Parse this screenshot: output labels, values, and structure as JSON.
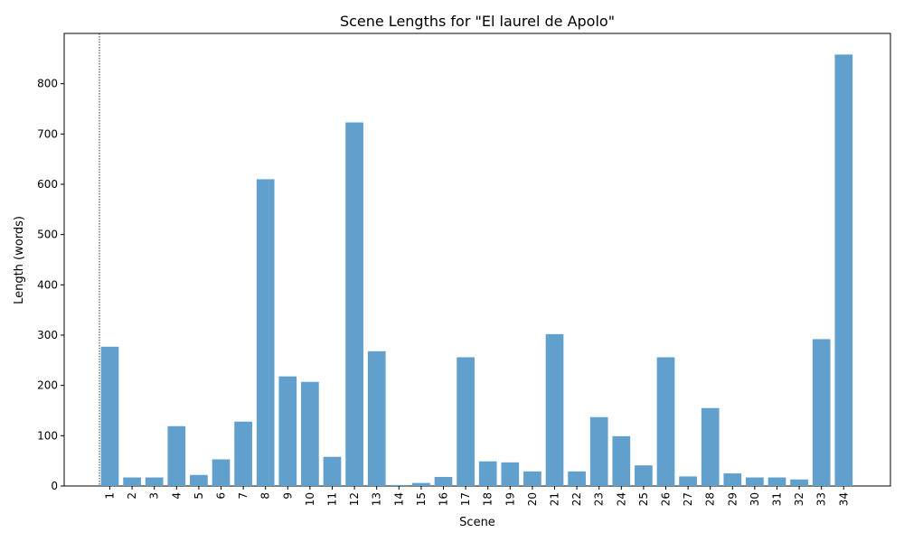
{
  "chart_data": {
    "type": "bar",
    "title": "Scene Lengths for \"El laurel de Apolo\"",
    "xlabel": "Scene",
    "ylabel": "Length (words)",
    "categories": [
      "1",
      "2",
      "3",
      "4",
      "5",
      "6",
      "7",
      "8",
      "9",
      "10",
      "11",
      "12",
      "13",
      "14",
      "15",
      "16",
      "17",
      "18",
      "19",
      "20",
      "21",
      "22",
      "23",
      "24",
      "25",
      "26",
      "27",
      "28",
      "29",
      "30",
      "31",
      "32",
      "33",
      "34"
    ],
    "values": [
      277,
      17,
      17,
      119,
      22,
      53,
      128,
      610,
      218,
      207,
      58,
      723,
      268,
      2,
      6,
      18,
      256,
      49,
      47,
      29,
      302,
      29,
      137,
      99,
      41,
      256,
      19,
      155,
      25,
      17,
      17,
      13,
      292,
      858
    ],
    "ylim": [
      0,
      900
    ],
    "yticks": [
      0,
      100,
      200,
      300,
      400,
      500,
      600,
      700,
      800
    ],
    "reference_line_category": "1",
    "bar_color": "#619fcc",
    "grid": false,
    "legend": "none"
  }
}
